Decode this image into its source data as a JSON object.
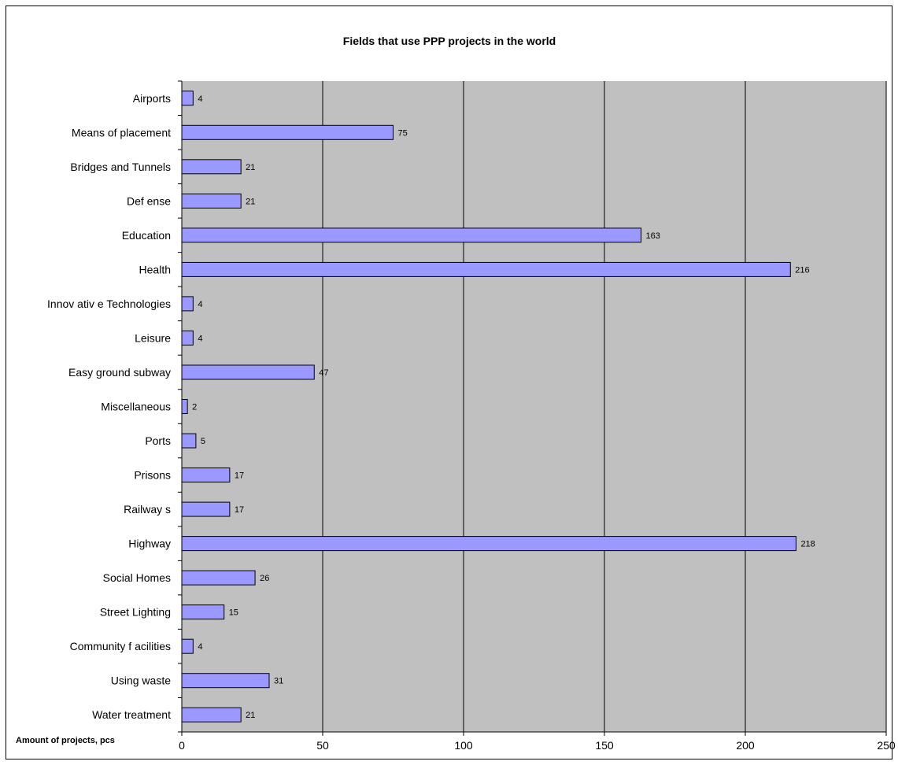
{
  "chart_data": {
    "type": "bar",
    "orientation": "horizontal",
    "title": "Fields that use PPP projects in the world",
    "xlabel": "Amount of projects, pcs",
    "ylabel": "",
    "categories": [
      "Airports",
      "Means of placement",
      "Bridges and Tunnels",
      "Def ense",
      "Education",
      "Health",
      "Innov ativ e Technologies",
      "Leisure",
      "Easy ground subway",
      "Miscellaneous",
      "Ports",
      "Prisons",
      "Railway s",
      "Highway",
      "Social Homes",
      "Street Lighting",
      "Community f acilities",
      "Using waste",
      "Water treatment"
    ],
    "values": [
      4,
      75,
      21,
      21,
      163,
      216,
      4,
      4,
      47,
      2,
      5,
      17,
      17,
      218,
      26,
      15,
      4,
      31,
      21
    ],
    "xlim": [
      0,
      250
    ],
    "xticks": [
      0,
      50,
      100,
      150,
      200,
      250
    ],
    "grid": true,
    "legend": "none",
    "colors": {
      "bar_fill": "#9999ff",
      "bar_stroke": "#000000",
      "plot_background": "#c0c0c0",
      "gridline": "#000000"
    }
  }
}
